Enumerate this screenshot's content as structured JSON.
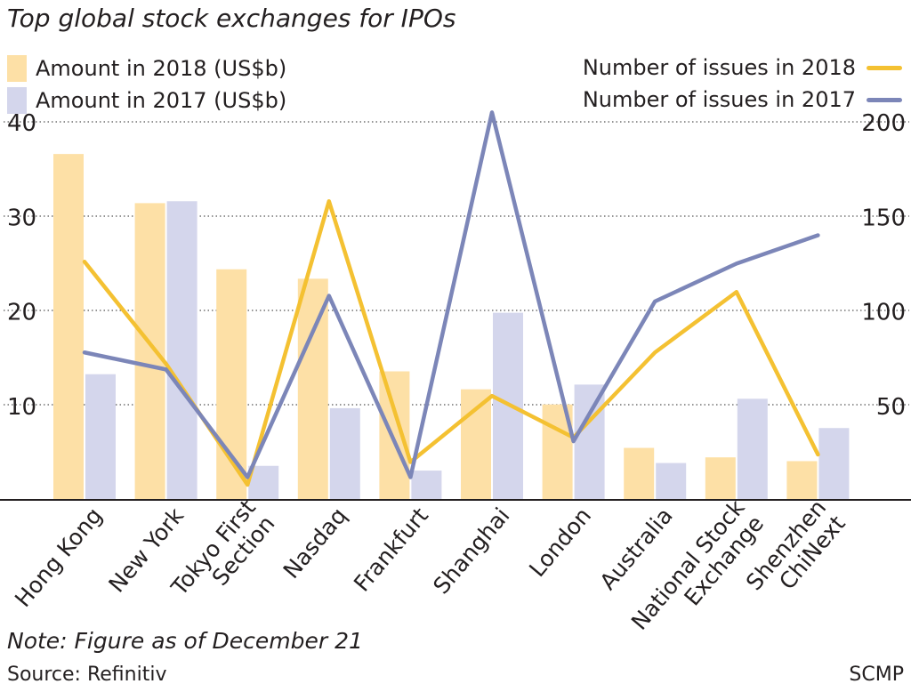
{
  "chart_data": {
    "type": "bar+line",
    "title": "Top global stock exchanges for IPOs",
    "categories": [
      [
        "Hong Kong"
      ],
      [
        "New York"
      ],
      [
        "Tokyo First",
        "Section"
      ],
      [
        "Nasdaq"
      ],
      [
        "Frankfurt"
      ],
      [
        "Shanghai"
      ],
      [
        "London"
      ],
      [
        "Australia"
      ],
      [
        "National Stock",
        "Exchange"
      ],
      [
        "Shenzhen",
        "ChiNext"
      ]
    ],
    "left_axis": {
      "ylim": [
        0,
        40
      ],
      "ticks": [
        10,
        20,
        30,
        40
      ],
      "tick_labels": [
        "10",
        "20",
        "30",
        "40"
      ]
    },
    "right_axis": {
      "ylim": [
        0,
        200
      ],
      "ticks": [
        50,
        100,
        150,
        200
      ],
      "tick_labels": [
        "50",
        "100",
        "150",
        "200"
      ]
    },
    "bar_series": [
      {
        "name": "Amount in 2018 (US$b)",
        "color": "#fde0a6",
        "values": [
          36.6,
          31.4,
          24.4,
          23.4,
          13.6,
          11.7,
          10.1,
          5.5,
          4.5,
          4.1
        ]
      },
      {
        "name": "Amount in 2017 (US$b)",
        "color": "#d4d6ec",
        "values": [
          13.3,
          31.6,
          3.6,
          9.7,
          3.1,
          19.8,
          12.2,
          3.9,
          10.7,
          7.6
        ]
      }
    ],
    "line_series": [
      {
        "name": "Number of issues in 2018",
        "color": "#f4c132",
        "values": [
          126,
          72,
          8,
          158,
          20,
          55,
          33,
          78,
          110,
          24
        ]
      },
      {
        "name": "Number of issues in 2017",
        "color": "#7c86b8",
        "values": [
          78,
          69,
          12,
          108,
          12,
          205,
          31,
          105,
          125,
          140
        ]
      }
    ]
  },
  "note": "Note: Figure as of December 21",
  "source": "Source: Refinitiv",
  "credit": "SCMP"
}
